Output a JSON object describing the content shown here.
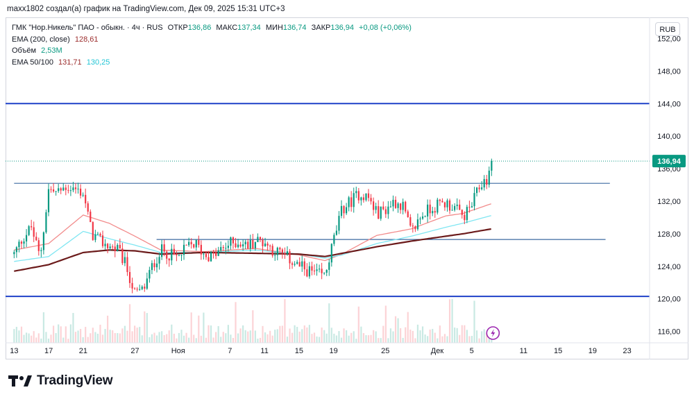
{
  "header": {
    "caption": "maxx1802 создал(а) график на TradingView.com, Дек 09, 2025 15:31 UTC+3"
  },
  "legend": {
    "symbol": "ГМК \"Нор.Никель\" ПАО - обыкн. · 4ч · RUS",
    "ohlc": {
      "open_label": "ОТКР",
      "open": "136,86",
      "high_label": "МАКС",
      "high": "137,34",
      "low_label": "МИН",
      "low": "136,74",
      "close_label": "ЗАКР",
      "close": "136,94",
      "change": "+0,08 (+0,06%)"
    },
    "ema200_label": "EMA (200, close)",
    "ema200_value": "128,61",
    "volume_label": "Объём",
    "volume_value": "2,53M",
    "ema50_100_label": "EMA 50/100",
    "ema50_value": "131,71",
    "ema100_value": "130,25"
  },
  "currency": "RUB",
  "branding": {
    "name": "TradingView"
  },
  "colors": {
    "up": "#089981",
    "down": "#f23645",
    "ema50": "#f28b8b",
    "ema100": "#7fe6f2",
    "ema200": "#6b1a1a",
    "level": "#1e40c8",
    "trendline": "#3b6aa0"
  },
  "chart_data": {
    "type": "candlestick",
    "title": "ГМК \"Нор.Никель\" ПАО - обыкн. · 4ч · RUS",
    "currency": "RUB",
    "ylim": [
      114.6,
      154.6
    ],
    "y_ticks": [
      "116,00",
      "120,00",
      "124,00",
      "128,00",
      "132,00",
      "136,00",
      "140,00",
      "144,00",
      "148,00",
      "152,00"
    ],
    "x_ticks": [
      {
        "label": "13",
        "day": 0
      },
      {
        "label": "17",
        "day": 4
      },
      {
        "label": "21",
        "day": 8
      },
      {
        "label": "27",
        "day": 14
      },
      {
        "label": "Ноя",
        "day": 19
      },
      {
        "label": "7",
        "day": 25
      },
      {
        "label": "11",
        "day": 29
      },
      {
        "label": "15",
        "day": 33
      },
      {
        "label": "19",
        "day": 37
      },
      {
        "label": "25",
        "day": 43
      },
      {
        "label": "Дек",
        "day": 49
      },
      {
        "label": "5",
        "day": 53
      },
      {
        "label": "11",
        "day": 59
      },
      {
        "label": "15",
        "day": 63
      },
      {
        "label": "19",
        "day": 67
      },
      {
        "label": "23",
        "day": 71
      }
    ],
    "last_price": "136,94",
    "last_price_value": 136.94,
    "horizontal_levels": [
      144.0,
      120.3
    ],
    "trend_lines": [
      {
        "from_day": 0,
        "to_day": 69,
        "price": 134.2
      },
      {
        "from_day": 16.5,
        "to_day": 68.5,
        "price": 127.3
      }
    ],
    "candle_path": {
      "start_day": 0,
      "end_day": 55.3,
      "count": 195,
      "anchors": [
        [
          0,
          125.5
        ],
        [
          1,
          127.5
        ],
        [
          2,
          128.8
        ],
        [
          3,
          125
        ],
        [
          4,
          133.5
        ],
        [
          5,
          133
        ],
        [
          6,
          133.8
        ],
        [
          7,
          133.5
        ],
        [
          8,
          133
        ],
        [
          9,
          128
        ],
        [
          10,
          127
        ],
        [
          11,
          126.5
        ],
        [
          12,
          126
        ],
        [
          13,
          124
        ],
        [
          14,
          120.5
        ],
        [
          15,
          121.2
        ],
        [
          16,
          124
        ],
        [
          17,
          126
        ],
        [
          18,
          125.5
        ],
        [
          19,
          125
        ],
        [
          20,
          126.3
        ],
        [
          21,
          126.8
        ],
        [
          22,
          125.5
        ],
        [
          23,
          125.2
        ],
        [
          24,
          126
        ],
        [
          25,
          126.8
        ],
        [
          26,
          127
        ],
        [
          27,
          126.5
        ],
        [
          28,
          127.2
        ],
        [
          29,
          127
        ],
        [
          30,
          126
        ],
        [
          31,
          125.5
        ],
        [
          32,
          124.8
        ],
        [
          33,
          124
        ],
        [
          34,
          123.5
        ],
        [
          35,
          123
        ],
        [
          36,
          122.8
        ],
        [
          37,
          127.2
        ],
        [
          38,
          131
        ],
        [
          39,
          132
        ],
        [
          40,
          133
        ],
        [
          41,
          132.5
        ],
        [
          42,
          130.5
        ],
        [
          43,
          131
        ],
        [
          44,
          132
        ],
        [
          45,
          131.5
        ],
        [
          46,
          128
        ],
        [
          47,
          130
        ],
        [
          48,
          131
        ],
        [
          49,
          131.5
        ],
        [
          50,
          131.8
        ],
        [
          51,
          131.2
        ],
        [
          52,
          130
        ],
        [
          53,
          131.5
        ],
        [
          54,
          134
        ],
        [
          55,
          135
        ],
        [
          55.3,
          136.9
        ]
      ]
    },
    "series": [
      {
        "name": "EMA 50",
        "value": "131,71",
        "points": [
          [
            0,
            126
          ],
          [
            4,
            126.8
          ],
          [
            8,
            130.3
          ],
          [
            11,
            129.3
          ],
          [
            14,
            127.7
          ],
          [
            17,
            126
          ],
          [
            22,
            125.8
          ],
          [
            28,
            126.2
          ],
          [
            33,
            125.4
          ],
          [
            36,
            124.7
          ],
          [
            38,
            125.5
          ],
          [
            42,
            127.8
          ],
          [
            46,
            128.6
          ],
          [
            50,
            130.2
          ],
          [
            52,
            130.5
          ],
          [
            55.3,
            131.7
          ]
        ]
      },
      {
        "name": "EMA 100",
        "value": "130,25",
        "points": [
          [
            0,
            124.6
          ],
          [
            4,
            125.2
          ],
          [
            8,
            128.3
          ],
          [
            11,
            127.4
          ],
          [
            14,
            126.6
          ],
          [
            17,
            125.7
          ],
          [
            22,
            125.7
          ],
          [
            28,
            126
          ],
          [
            33,
            125.5
          ],
          [
            36,
            125
          ],
          [
            38,
            125.4
          ],
          [
            42,
            126.8
          ],
          [
            46,
            127.7
          ],
          [
            50,
            128.8
          ],
          [
            52,
            129.3
          ],
          [
            55.3,
            130.25
          ]
        ]
      },
      {
        "name": "EMA (200, close)",
        "value": "128,61",
        "points": [
          [
            0,
            123.4
          ],
          [
            4,
            124.2
          ],
          [
            8,
            125.7
          ],
          [
            11,
            126
          ],
          [
            14,
            125.9
          ],
          [
            17,
            125.5
          ],
          [
            22,
            125.7
          ],
          [
            28,
            125.6
          ],
          [
            33,
            125.5
          ],
          [
            36,
            125.2
          ],
          [
            38,
            125.6
          ],
          [
            42,
            126.4
          ],
          [
            46,
            127.1
          ],
          [
            50,
            127.7
          ],
          [
            52,
            128
          ],
          [
            55.3,
            128.6
          ]
        ]
      }
    ],
    "volume": {
      "label": "Объём",
      "last": "2,53M"
    }
  }
}
